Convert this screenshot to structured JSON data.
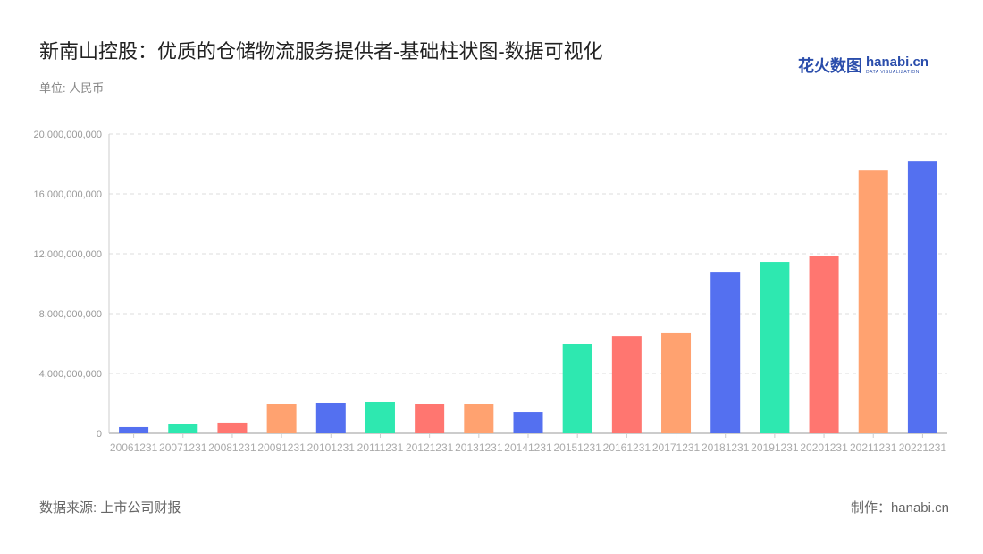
{
  "title": "新南山控股：优质的仓储物流服务提供者-基础柱状图-数据可视化",
  "subtitle": "单位: 人民币",
  "source": "数据来源: 上市公司财报",
  "credit": "制作：hanabi.cn",
  "logo": {
    "cn": "花火数图",
    "en": "hanabi.cn",
    "tagline": "DATA VISUALIZATION"
  },
  "colors": [
    "#5470f0",
    "#2ee8b0",
    "#ff7670",
    "#ffa270"
  ],
  "chart_data": {
    "type": "bar",
    "categories": [
      "20061231",
      "20071231",
      "20081231",
      "20091231",
      "20101231",
      "20111231",
      "20121231",
      "20131231",
      "20141231",
      "20151231",
      "20161231",
      "20171231",
      "20181231",
      "20191231",
      "20201231",
      "20211231",
      "20221231"
    ],
    "values": [
      420000000,
      600000000,
      720000000,
      1970000000,
      2030000000,
      2090000000,
      1970000000,
      1970000000,
      1430000000,
      5970000000,
      6500000000,
      6690000000,
      10800000000,
      11460000000,
      11880000000,
      17600000000,
      18200000000
    ],
    "ylim": [
      0,
      20000000000
    ],
    "yticks": [
      0,
      4000000000,
      8000000000,
      12000000000,
      16000000000,
      20000000000
    ],
    "ytick_labels": [
      "0",
      "4,000,000,000",
      "8,000,000,000",
      "12,000,000,000",
      "16,000,000,000",
      "20,000,000,000"
    ],
    "grid": true,
    "xlabel": "",
    "ylabel": ""
  }
}
